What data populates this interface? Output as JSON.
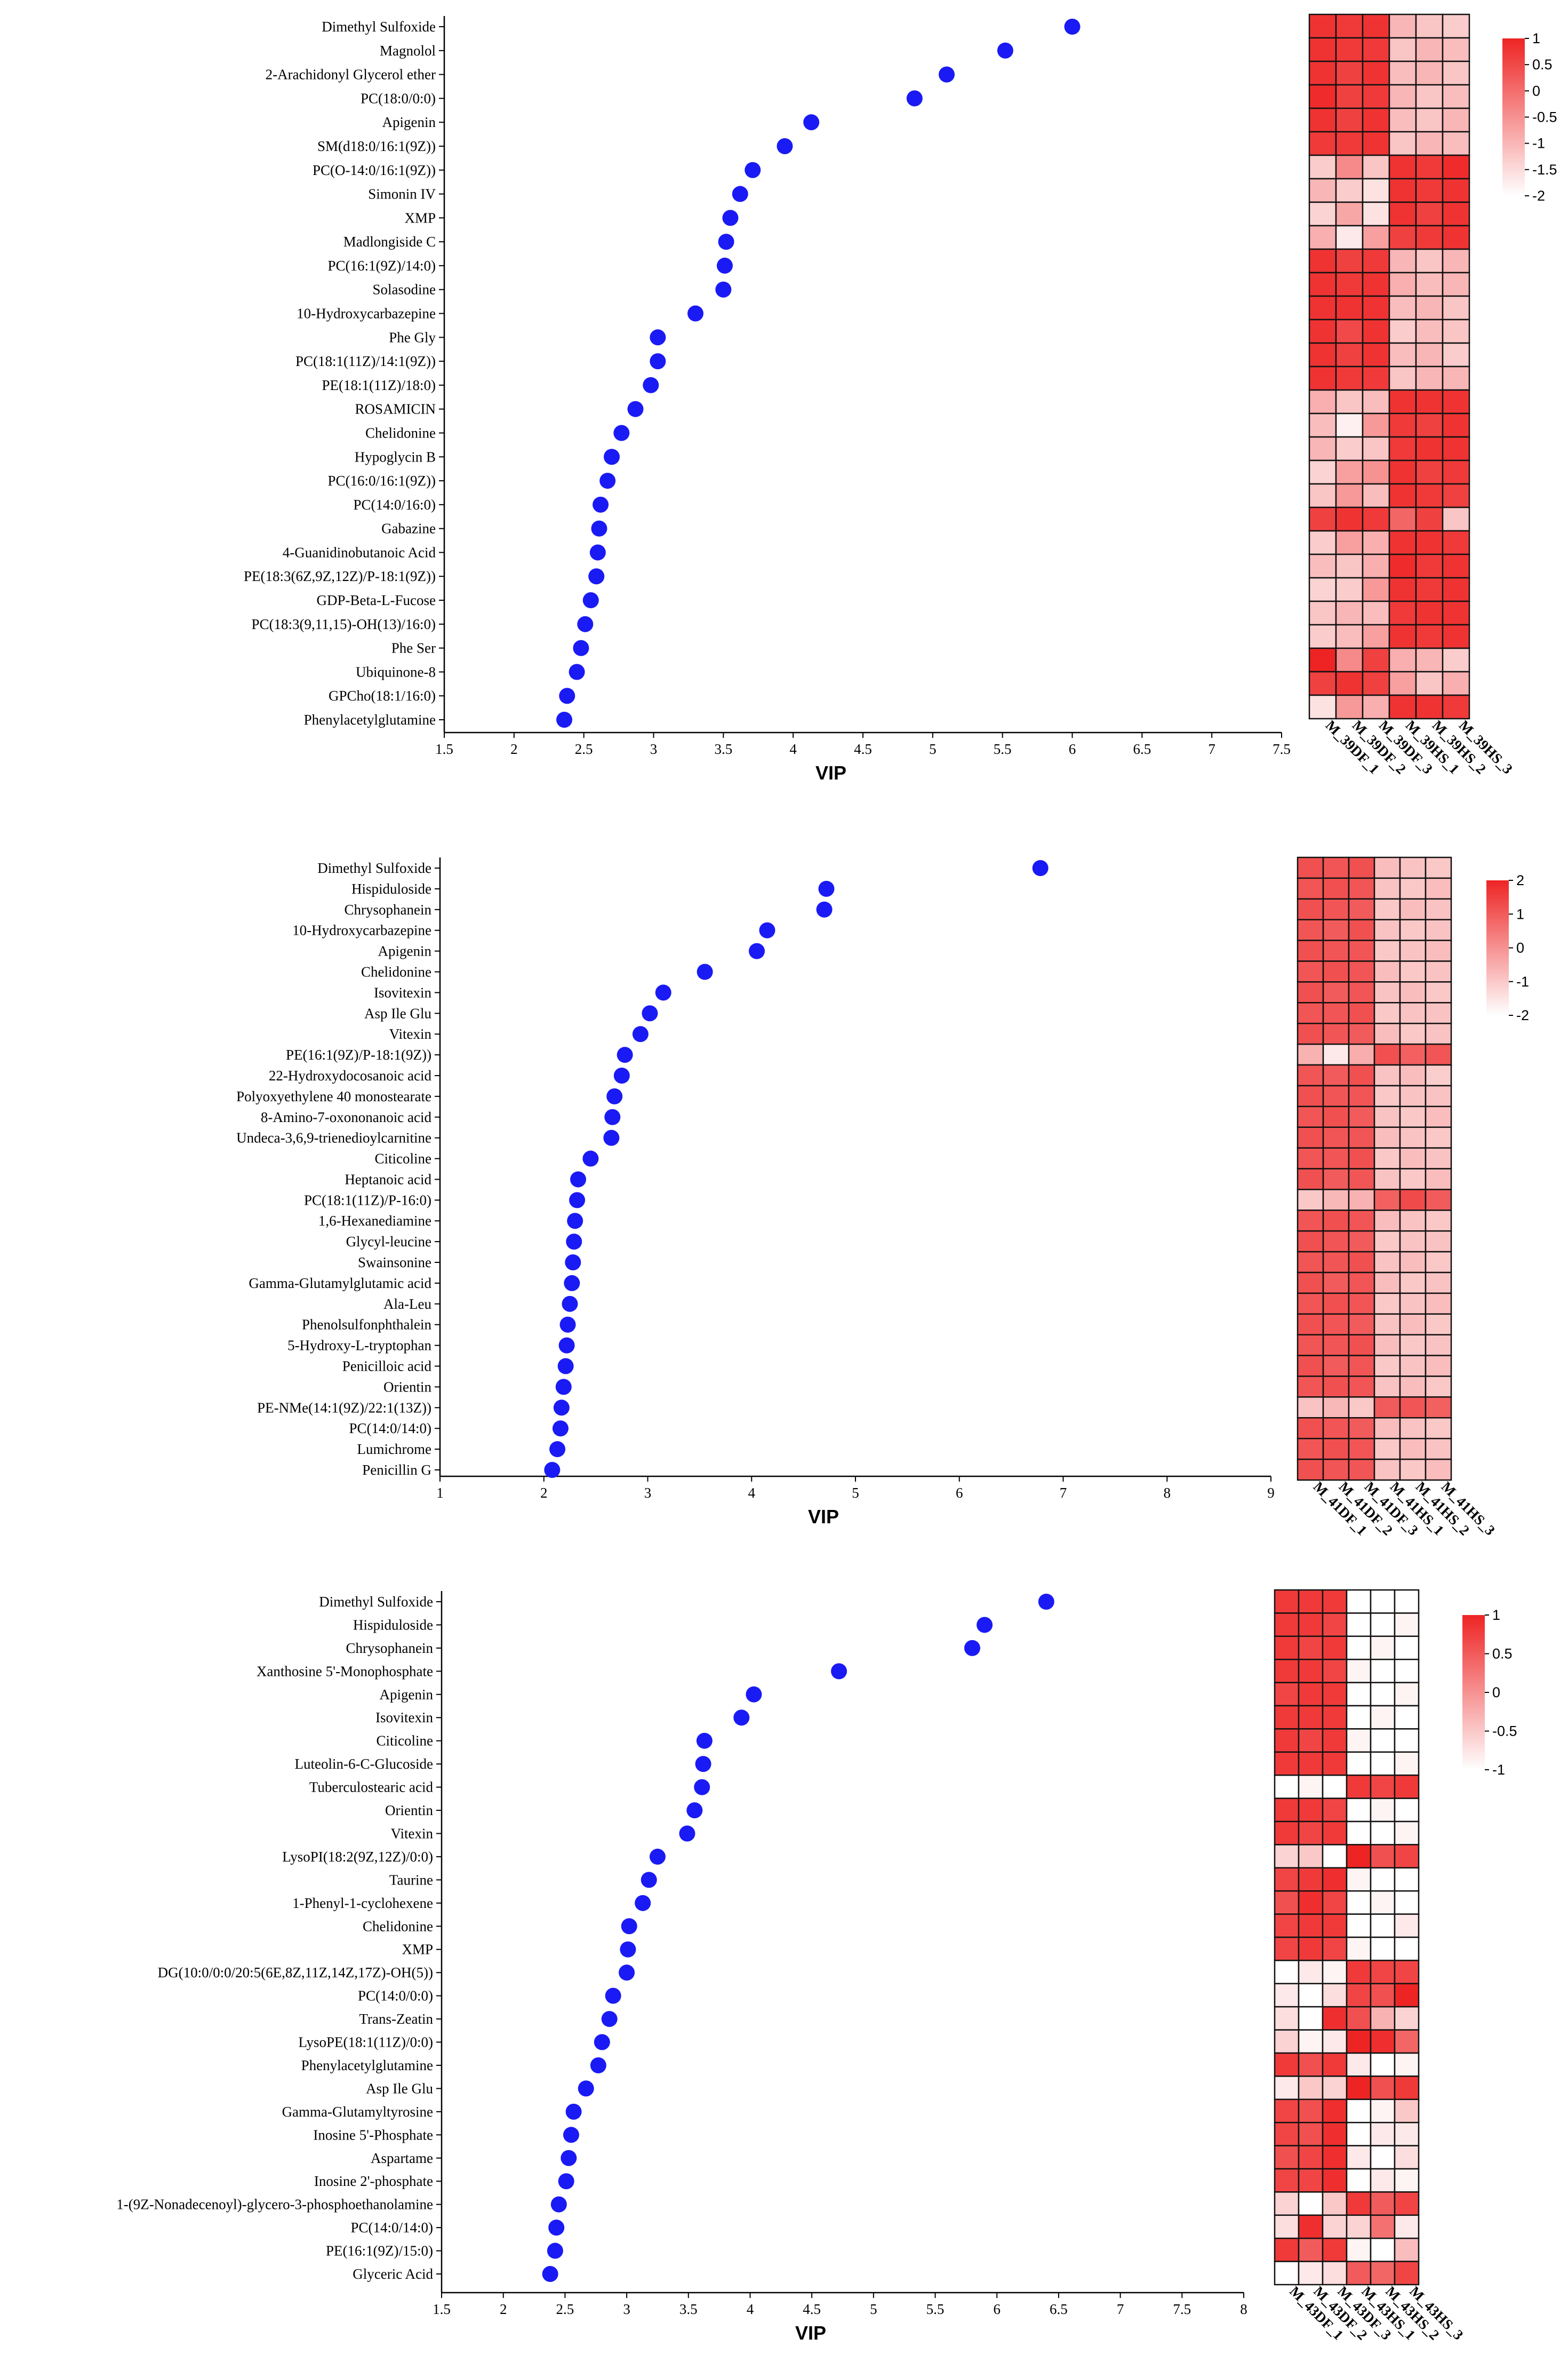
{
  "chart_data": [
    {
      "type": "scatter",
      "title": "",
      "xlabel": "VIP",
      "ylabel": "",
      "xlim": [
        1.5,
        7.5
      ],
      "xticks": [
        "1.5",
        "2",
        "2.5",
        "3",
        "3.5",
        "4",
        "4.5",
        "5",
        "5.5",
        "6",
        "6.5",
        "7",
        "7.5"
      ],
      "dot_color": "#1a1af5",
      "metabolites": [
        "Dimethyl Sulfoxide",
        "Magnolol",
        "2-Arachidonyl Glycerol ether",
        "PC(18:0/0:0)",
        "Apigenin",
        "SM(d18:0/16:1(9Z))",
        "PC(O-14:0/16:1(9Z))",
        "Simonin IV",
        "XMP",
        "Madlongiside C",
        "PC(16:1(9Z)/14:0)",
        "Solasodine",
        "10-Hydroxycarbazepine",
        "Phe Gly",
        "PC(18:1(11Z)/14:1(9Z))",
        "PE(18:1(11Z)/18:0)",
        "ROSAMICIN",
        "Chelidonine",
        "Hypoglycin B",
        "PC(16:0/16:1(9Z))",
        "PC(14:0/16:0)",
        "Gabazine",
        "4-Guanidinobutanoic Acid",
        "PE(18:3(6Z,9Z,12Z)/P-18:1(9Z))",
        "GDP-Beta-L-Fucose",
        "PC(18:3(9,11,15)-OH(13)/16:0)",
        "Phe Ser",
        "Ubiquinone-8",
        "GPCho(18:1/16:0)",
        "Phenylacetylglutamine"
      ],
      "vip": [
        6.0,
        5.52,
        5.1,
        4.87,
        4.13,
        3.94,
        3.71,
        3.62,
        3.55,
        3.52,
        3.51,
        3.5,
        3.3,
        3.03,
        3.03,
        2.98,
        2.87,
        2.77,
        2.7,
        2.67,
        2.62,
        2.61,
        2.6,
        2.59,
        2.55,
        2.51,
        2.48,
        2.45,
        2.38,
        2.36
      ],
      "heatmap": {
        "columns": [
          "M_39DF_1",
          "M_39DF_2",
          "M_39DF_3",
          "M_39HS_1",
          "M_39HS_2",
          "M_39HS_3"
        ],
        "legend_ticks": [
          "1",
          "0.5",
          "0",
          "-0.5",
          "-1",
          "-1.5",
          "-2"
        ],
        "legend_range": [
          -2,
          1
        ],
        "values": [
          [
            0.8,
            0.7,
            0.8,
            -1.0,
            -1.2,
            -1.3
          ],
          [
            0.8,
            0.7,
            0.7,
            -1.2,
            -1.0,
            -1.1
          ],
          [
            0.8,
            0.6,
            0.8,
            -1.1,
            -1.0,
            -1.2
          ],
          [
            0.9,
            0.6,
            0.7,
            -1.0,
            -1.2,
            -1.1
          ],
          [
            0.8,
            0.6,
            0.8,
            -1.1,
            -1.2,
            -1.0
          ],
          [
            0.7,
            0.7,
            0.8,
            -1.2,
            -1.0,
            -1.1
          ],
          [
            -1.3,
            -0.4,
            -1.2,
            0.8,
            0.7,
            0.9
          ],
          [
            -1.0,
            -1.3,
            -1.6,
            0.8,
            0.7,
            0.8
          ],
          [
            -1.4,
            -0.8,
            -1.6,
            0.8,
            0.6,
            0.8
          ],
          [
            -0.9,
            -1.7,
            -0.7,
            0.6,
            0.7,
            0.8
          ],
          [
            0.8,
            0.6,
            0.7,
            -1.0,
            -1.2,
            -1.0
          ],
          [
            0.8,
            0.7,
            0.8,
            -0.9,
            -1.1,
            -1.0
          ],
          [
            0.8,
            0.8,
            0.8,
            -1.1,
            -1.0,
            -1.2
          ],
          [
            0.8,
            0.5,
            0.8,
            -1.3,
            -1.1,
            -1.2
          ],
          [
            0.8,
            0.6,
            0.8,
            -1.1,
            -1.0,
            -1.3
          ],
          [
            0.8,
            0.7,
            0.7,
            -1.2,
            -1.0,
            -1.0
          ],
          [
            -0.9,
            -1.2,
            -1.1,
            0.8,
            0.8,
            0.8
          ],
          [
            -1.1,
            -1.8,
            -0.6,
            0.7,
            0.6,
            0.8
          ],
          [
            -1.0,
            -1.3,
            -1.2,
            0.7,
            0.8,
            0.8
          ],
          [
            -1.4,
            -0.7,
            -0.5,
            0.8,
            0.6,
            0.7
          ],
          [
            -1.2,
            -0.6,
            -1.1,
            0.8,
            0.7,
            0.6
          ],
          [
            0.6,
            0.8,
            0.7,
            0.1,
            0.6,
            -1.2
          ],
          [
            -1.3,
            -0.7,
            -0.9,
            0.8,
            0.8,
            0.7
          ],
          [
            -1.1,
            -1.2,
            -0.9,
            0.9,
            0.7,
            0.8
          ],
          [
            -1.4,
            -1.3,
            -0.6,
            0.8,
            0.7,
            0.8
          ],
          [
            -1.2,
            -1.0,
            -1.1,
            0.7,
            0.8,
            0.8
          ],
          [
            -1.3,
            -1.1,
            -0.7,
            0.8,
            0.7,
            0.8
          ],
          [
            1.0,
            -0.4,
            0.6,
            -0.9,
            -1.0,
            -1.3
          ],
          [
            0.6,
            0.8,
            0.6,
            -0.7,
            -1.2,
            -0.9
          ],
          [
            -1.6,
            -0.6,
            -0.9,
            0.8,
            0.8,
            0.7
          ]
        ]
      }
    },
    {
      "type": "scatter",
      "title": "",
      "xlabel": "VIP",
      "ylabel": "",
      "xlim": [
        1,
        9
      ],
      "xticks": [
        "1",
        "2",
        "3",
        "4",
        "5",
        "6",
        "7",
        "8",
        "9"
      ],
      "dot_color": "#1a1af5",
      "metabolites": [
        "Dimethyl Sulfoxide",
        "Hispiduloside",
        "Chrysophanein",
        "10-Hydroxycarbazepine",
        "Apigenin",
        "Chelidonine",
        "Isovitexin",
        "Asp Ile Glu",
        "Vitexin",
        "PE(16:1(9Z)/P-18:1(9Z))",
        "22-Hydroxydocosanoic acid",
        "Polyoxyethylene 40 monostearate",
        "8-Amino-7-oxononanoic acid",
        "Undeca-3,6,9-trienedioylcarnitine",
        "Citicoline",
        "Heptanoic acid",
        "PC(18:1(11Z)/P-16:0)",
        "1,6-Hexanediamine",
        "Glycyl-leucine",
        "Swainsonine",
        "Gamma-Glutamylglutamic acid",
        "Ala-Leu",
        "Phenolsulfonphthalein",
        "5-Hydroxy-L-tryptophan",
        "Penicilloic acid",
        "Orientin",
        "PE-NMe(14:1(9Z)/22:1(13Z))",
        "PC(14:0/14:0)",
        "Lumichrome",
        "Penicillin G"
      ],
      "vip": [
        6.78,
        4.72,
        4.7,
        4.15,
        4.05,
        3.55,
        3.15,
        3.02,
        2.93,
        2.78,
        2.75,
        2.68,
        2.66,
        2.65,
        2.45,
        2.33,
        2.32,
        2.3,
        2.29,
        2.28,
        2.27,
        2.25,
        2.23,
        2.22,
        2.21,
        2.19,
        2.17,
        2.16,
        2.13,
        2.08
      ],
      "heatmap": {
        "columns": [
          "M_41DF_1",
          "M_41DF_2",
          "M_41DF_3",
          "M_41HS_1",
          "M_41HS_2",
          "M_41HS_3"
        ],
        "legend_ticks": [
          "2",
          "1",
          "0",
          "-1",
          "-2"
        ],
        "legend_range": [
          -2,
          2
        ],
        "values": [
          [
            1.2,
            1.1,
            1.2,
            -0.8,
            -0.9,
            -1.0
          ],
          [
            1.1,
            1.2,
            1.1,
            -0.9,
            -1.0,
            -0.8
          ],
          [
            1.2,
            1.1,
            1.0,
            -1.0,
            -0.8,
            -0.9
          ],
          [
            1.1,
            1.0,
            1.2,
            -0.9,
            -1.0,
            -0.9
          ],
          [
            1.2,
            1.1,
            1.1,
            -1.0,
            -0.9,
            -0.8
          ],
          [
            1.1,
            1.2,
            1.1,
            -0.8,
            -1.0,
            -0.9
          ],
          [
            1.2,
            1.0,
            1.1,
            -0.9,
            -0.8,
            -1.0
          ],
          [
            1.1,
            1.1,
            1.2,
            -1.0,
            -0.9,
            -0.9
          ],
          [
            1.2,
            1.1,
            1.0,
            -0.8,
            -1.0,
            -0.9
          ],
          [
            -0.6,
            -1.6,
            -0.5,
            1.2,
            0.9,
            1.1
          ],
          [
            1.1,
            1.0,
            1.2,
            -0.9,
            -0.8,
            -1.1
          ],
          [
            1.2,
            1.1,
            1.1,
            -1.0,
            -0.9,
            -0.9
          ],
          [
            1.1,
            1.2,
            1.0,
            -0.9,
            -1.0,
            -0.8
          ],
          [
            1.2,
            1.1,
            1.1,
            -0.8,
            -0.9,
            -1.0
          ],
          [
            1.1,
            1.1,
            1.2,
            -1.0,
            -0.8,
            -0.9
          ],
          [
            1.2,
            1.0,
            1.1,
            -0.9,
            -1.0,
            -0.8
          ],
          [
            -1.0,
            -0.7,
            -0.6,
            0.9,
            1.3,
            1.0
          ],
          [
            1.1,
            1.2,
            1.1,
            -0.8,
            -0.9,
            -1.0
          ],
          [
            1.2,
            1.1,
            1.0,
            -1.0,
            -0.9,
            -0.9
          ],
          [
            1.1,
            1.1,
            1.2,
            -0.9,
            -0.8,
            -1.0
          ],
          [
            1.2,
            1.0,
            1.1,
            -0.8,
            -1.0,
            -0.9
          ],
          [
            1.1,
            1.2,
            1.1,
            -1.0,
            -0.9,
            -0.8
          ],
          [
            1.2,
            1.1,
            1.0,
            -0.9,
            -0.8,
            -1.0
          ],
          [
            1.1,
            1.1,
            1.2,
            -0.8,
            -1.0,
            -0.9
          ],
          [
            1.2,
            1.0,
            1.1,
            -1.0,
            -0.9,
            -0.8
          ],
          [
            1.1,
            1.2,
            1.1,
            -0.9,
            -0.8,
            -1.0
          ],
          [
            -0.9,
            -0.7,
            -1.0,
            1.0,
            1.1,
            0.9
          ],
          [
            1.2,
            1.1,
            1.0,
            -0.8,
            -0.9,
            -1.0
          ],
          [
            1.1,
            1.2,
            1.1,
            -1.0,
            -0.8,
            -0.9
          ],
          [
            1.2,
            1.1,
            1.1,
            -0.9,
            -1.0,
            -0.8
          ]
        ]
      }
    },
    {
      "type": "scatter",
      "title": "",
      "xlabel": "VIP",
      "ylabel": "",
      "xlim": [
        1.5,
        8
      ],
      "xticks": [
        "1.5",
        "2",
        "2.5",
        "3",
        "3.5",
        "4",
        "4.5",
        "5",
        "5.5",
        "6",
        "6.5",
        "7",
        "7.5",
        "8"
      ],
      "dot_color": "#1a1af5",
      "metabolites": [
        "Dimethyl Sulfoxide",
        "Hispiduloside",
        "Chrysophanein",
        "Xanthosine 5'-Monophosphate",
        "Apigenin",
        "Isovitexin",
        "Citicoline",
        "Luteolin-6-C-Glucoside",
        "Tuberculostearic acid",
        "Orientin",
        "Vitexin",
        "LysoPI(18:2(9Z,12Z)/0:0)",
        "Taurine",
        "1-Phenyl-1-cyclohexene",
        "Chelidonine",
        "XMP",
        "DG(10:0/0:0/20:5(6E,8Z,11Z,14Z,17Z)-OH(5))",
        "PC(14:0/0:0)",
        "Trans-Zeatin",
        "LysoPE(18:1(11Z)/0:0)",
        "Phenylacetylglutamine",
        "Asp Ile Glu",
        "Gamma-Glutamyltyrosine",
        "Inosine 5'-Phosphate",
        "Aspartame",
        "Inosine 2'-phosphate",
        "1-(9Z-Nonadecenoyl)-glycero-3-phosphoethanolamine",
        "PC(14:0/14:0)",
        "PE(16:1(9Z)/15:0)",
        "Glyceric Acid"
      ],
      "vip": [
        6.4,
        5.9,
        5.8,
        4.72,
        4.03,
        3.93,
        3.63,
        3.62,
        3.61,
        3.55,
        3.49,
        3.25,
        3.18,
        3.13,
        3.02,
        3.01,
        3.0,
        2.89,
        2.86,
        2.8,
        2.77,
        2.67,
        2.57,
        2.55,
        2.53,
        2.51,
        2.45,
        2.43,
        2.42,
        2.38
      ],
      "heatmap": {
        "columns": [
          "M_43DF_1",
          "M_43DF_2",
          "M_43DF_3",
          "M_43HS_1",
          "M_43HS_2",
          "M_43HS_3"
        ],
        "legend_ticks": [
          "1",
          "0.5",
          "0",
          "-0.5",
          "-1"
        ],
        "legend_range": [
          -1,
          1
        ],
        "values": [
          [
            0.8,
            0.8,
            0.8,
            -1.0,
            -1.0,
            -1.0
          ],
          [
            0.8,
            0.8,
            0.7,
            -1.0,
            -1.0,
            -0.9
          ],
          [
            0.8,
            0.7,
            0.8,
            -1.0,
            -0.9,
            -1.0
          ],
          [
            0.8,
            0.8,
            0.7,
            -0.9,
            -1.0,
            -1.0
          ],
          [
            0.7,
            0.8,
            0.8,
            -1.0,
            -1.0,
            -0.9
          ],
          [
            0.8,
            0.8,
            0.8,
            -1.0,
            -0.9,
            -1.0
          ],
          [
            0.8,
            0.7,
            0.8,
            -0.9,
            -1.0,
            -1.0
          ],
          [
            0.8,
            0.8,
            0.8,
            -1.0,
            -1.0,
            -0.9
          ],
          [
            -1.0,
            -0.9,
            -1.0,
            0.8,
            0.7,
            0.8
          ],
          [
            0.8,
            0.8,
            0.7,
            -1.0,
            -0.9,
            -1.0
          ],
          [
            0.8,
            0.7,
            0.8,
            -1.0,
            -1.0,
            -0.9
          ],
          [
            -0.6,
            -0.5,
            -1.0,
            1.0,
            0.6,
            0.7
          ],
          [
            0.7,
            0.8,
            0.9,
            -0.9,
            -1.0,
            -1.0
          ],
          [
            0.6,
            0.9,
            0.7,
            -1.0,
            -0.9,
            -1.0
          ],
          [
            0.7,
            0.8,
            0.8,
            -1.0,
            -1.0,
            -0.8
          ],
          [
            0.7,
            0.8,
            0.7,
            -0.9,
            -1.0,
            -1.0
          ],
          [
            -1.0,
            -0.8,
            -0.9,
            0.8,
            0.7,
            0.7
          ],
          [
            -0.8,
            -1.0,
            -0.7,
            0.7,
            0.6,
            1.0
          ],
          [
            -0.7,
            -1.0,
            0.9,
            0.6,
            -0.3,
            -0.6
          ],
          [
            -0.6,
            -0.9,
            -0.8,
            1.0,
            0.9,
            0.4
          ],
          [
            0.8,
            0.6,
            0.8,
            -0.8,
            -1.0,
            -0.9
          ],
          [
            -0.8,
            -0.5,
            -0.6,
            1.0,
            0.6,
            0.8
          ],
          [
            0.7,
            0.6,
            0.9,
            -1.0,
            -0.9,
            -0.5
          ],
          [
            0.7,
            0.6,
            0.9,
            -1.0,
            -0.8,
            -0.8
          ],
          [
            0.6,
            0.7,
            0.9,
            -0.8,
            -1.0,
            -0.7
          ],
          [
            0.7,
            0.7,
            0.9,
            -1.0,
            -0.8,
            -0.9
          ],
          [
            -0.6,
            -1.0,
            -0.5,
            0.8,
            0.5,
            0.7
          ],
          [
            -0.7,
            0.9,
            -0.6,
            -0.6,
            0.3,
            -0.8
          ],
          [
            0.8,
            0.5,
            0.8,
            -0.9,
            -1.0,
            -0.4
          ],
          [
            -1.0,
            -0.8,
            -0.7,
            0.5,
            0.4,
            0.7
          ]
        ]
      }
    }
  ]
}
